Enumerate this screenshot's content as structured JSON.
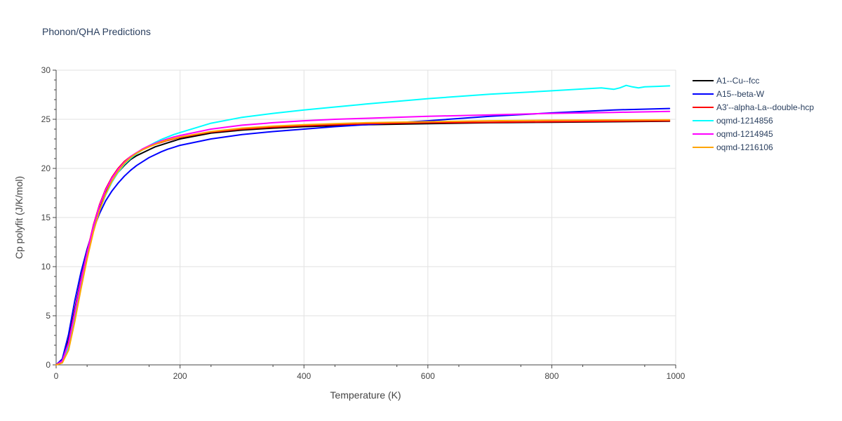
{
  "chart_data": {
    "type": "line",
    "title": "Phonon/QHA Predictions",
    "xlabel": "Temperature (K)",
    "ylabel": "Cp polyfit (J/K/mol)",
    "xlim": [
      0,
      1000
    ],
    "ylim": [
      0,
      30
    ],
    "xticks": [
      0,
      200,
      400,
      600,
      800,
      1000
    ],
    "yticks": [
      0,
      5,
      10,
      15,
      20,
      25,
      30
    ],
    "grid": true,
    "legend_position": "right",
    "series": [
      {
        "name": "A1--Cu--fcc",
        "color": "#000000",
        "x": [
          0,
          10,
          20,
          30,
          40,
          50,
          60,
          70,
          80,
          90,
          100,
          110,
          120,
          130,
          140,
          150,
          160,
          170,
          180,
          190,
          200,
          250,
          300,
          350,
          400,
          450,
          500,
          600,
          700,
          800,
          900,
          990
        ],
        "y": [
          0,
          0.4,
          2.5,
          5.6,
          8.7,
          11.5,
          14.0,
          16.0,
          17.5,
          18.7,
          19.6,
          20.3,
          20.9,
          21.3,
          21.6,
          21.9,
          22.2,
          22.4,
          22.6,
          22.8,
          23.0,
          23.6,
          23.9,
          24.1,
          24.25,
          24.35,
          24.45,
          24.55,
          24.65,
          24.7,
          24.75,
          24.8
        ]
      },
      {
        "name": "A15--beta-W",
        "color": "#0000ff",
        "x": [
          0,
          10,
          20,
          30,
          40,
          50,
          60,
          70,
          80,
          90,
          100,
          110,
          120,
          130,
          140,
          150,
          160,
          170,
          180,
          190,
          200,
          250,
          300,
          350,
          400,
          450,
          500,
          600,
          700,
          800,
          900,
          990
        ],
        "y": [
          0,
          0.6,
          3.1,
          6.5,
          9.4,
          11.8,
          13.8,
          15.4,
          16.7,
          17.7,
          18.5,
          19.2,
          19.8,
          20.3,
          20.7,
          21.1,
          21.4,
          21.7,
          21.95,
          22.15,
          22.35,
          23.0,
          23.45,
          23.75,
          24.0,
          24.25,
          24.45,
          24.85,
          25.3,
          25.65,
          25.95,
          26.1
        ]
      },
      {
        "name": "A3'--alpha-La--double-hcp",
        "color": "#ff0000",
        "x": [
          0,
          10,
          20,
          30,
          40,
          50,
          60,
          70,
          80,
          90,
          100,
          110,
          120,
          130,
          140,
          150,
          160,
          170,
          180,
          190,
          200,
          250,
          300,
          350,
          400,
          450,
          500,
          600,
          700,
          800,
          900,
          990
        ],
        "y": [
          0,
          0.4,
          2.3,
          5.4,
          8.6,
          11.5,
          14.2,
          16.3,
          17.9,
          19.1,
          20.0,
          20.7,
          21.2,
          21.6,
          21.9,
          22.2,
          22.45,
          22.65,
          22.85,
          23.0,
          23.15,
          23.7,
          24.0,
          24.2,
          24.35,
          24.45,
          24.55,
          24.65,
          24.7,
          24.75,
          24.8,
          24.85
        ]
      },
      {
        "name": "oqmd-1214856",
        "color": "#00ffff",
        "x": [
          0,
          10,
          20,
          30,
          40,
          50,
          60,
          70,
          80,
          90,
          100,
          110,
          120,
          130,
          140,
          150,
          160,
          170,
          180,
          190,
          200,
          250,
          300,
          350,
          400,
          450,
          500,
          600,
          700,
          800,
          880,
          900,
          910,
          920,
          930,
          940,
          950,
          970,
          990
        ],
        "y": [
          0,
          0.3,
          1.8,
          4.8,
          8.0,
          11.0,
          13.6,
          15.7,
          17.3,
          18.6,
          19.6,
          20.4,
          21.0,
          21.5,
          21.9,
          22.3,
          22.65,
          22.95,
          23.2,
          23.45,
          23.65,
          24.6,
          25.2,
          25.6,
          25.95,
          26.25,
          26.55,
          27.1,
          27.55,
          27.9,
          28.2,
          28.05,
          28.2,
          28.45,
          28.3,
          28.2,
          28.3,
          28.35,
          28.4
        ]
      },
      {
        "name": "oqmd-1214945",
        "color": "#ff00ff",
        "x": [
          0,
          10,
          20,
          30,
          40,
          50,
          60,
          70,
          80,
          90,
          100,
          110,
          120,
          130,
          140,
          150,
          160,
          170,
          180,
          190,
          200,
          250,
          300,
          350,
          400,
          450,
          500,
          600,
          700,
          800,
          900,
          990
        ],
        "y": [
          0,
          0.4,
          2.2,
          5.3,
          8.5,
          11.4,
          14.1,
          16.2,
          17.8,
          19.0,
          19.9,
          20.6,
          21.2,
          21.6,
          22.0,
          22.3,
          22.55,
          22.8,
          23.0,
          23.2,
          23.35,
          24.0,
          24.4,
          24.65,
          24.85,
          25.0,
          25.1,
          25.3,
          25.45,
          25.6,
          25.7,
          25.8
        ]
      },
      {
        "name": "oqmd-1216106",
        "color": "#ffa500",
        "x": [
          0,
          10,
          20,
          30,
          40,
          50,
          60,
          70,
          80,
          90,
          100,
          110,
          120,
          130,
          140,
          150,
          160,
          170,
          180,
          190,
          200,
          250,
          300,
          350,
          400,
          450,
          500,
          600,
          700,
          800,
          900,
          990
        ],
        "y": [
          0,
          0.2,
          1.5,
          4.4,
          7.7,
          10.8,
          13.5,
          15.7,
          17.4,
          18.7,
          19.7,
          20.5,
          21.1,
          21.55,
          21.9,
          22.2,
          22.45,
          22.7,
          22.9,
          23.05,
          23.2,
          23.75,
          24.1,
          24.3,
          24.45,
          24.55,
          24.65,
          24.75,
          24.85,
          24.9,
          24.93,
          24.95
        ]
      }
    ]
  }
}
